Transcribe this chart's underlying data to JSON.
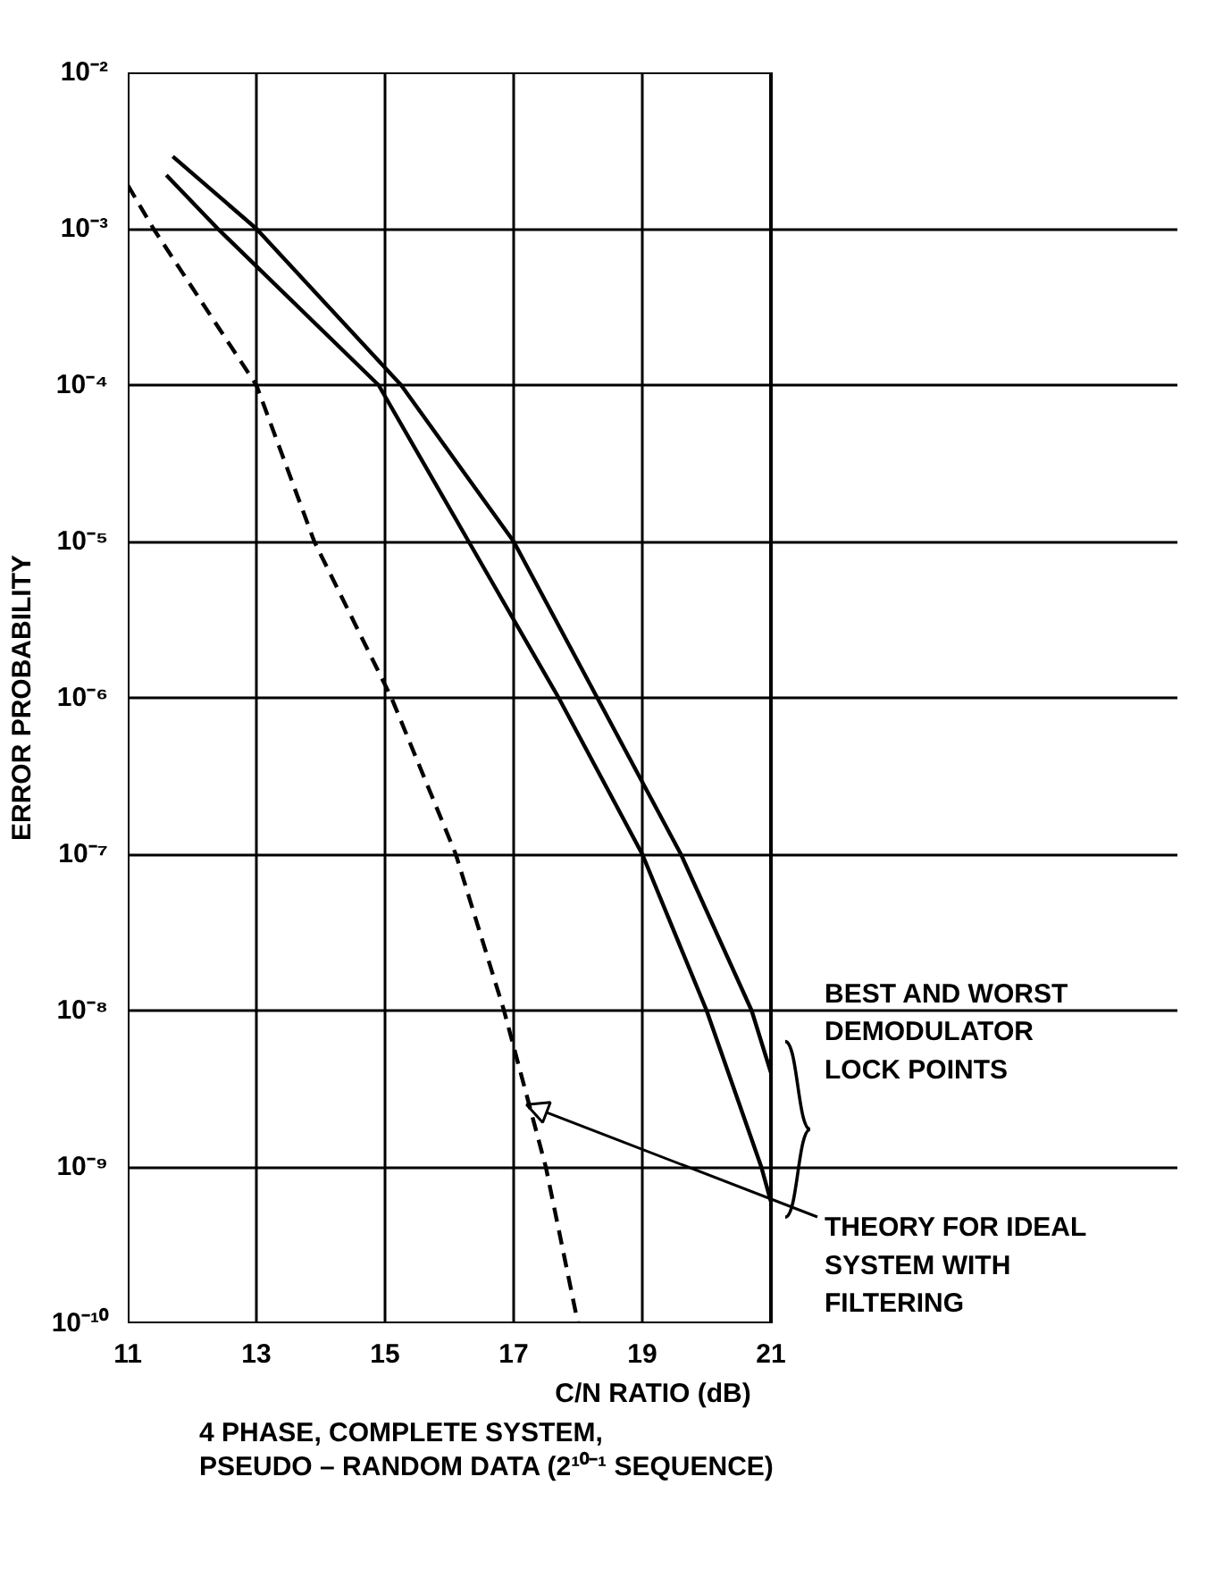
{
  "chart_data": {
    "type": "line",
    "xlabel": "C/N RATIO (dB)",
    "ylabel": "ERROR PROBABILITY",
    "xlim": [
      11,
      21
    ],
    "xticks": [
      11,
      13,
      15,
      17,
      19,
      21
    ],
    "ylim": [
      1e-10,
      0.01
    ],
    "log": "y",
    "grid": true,
    "yticks": [
      {
        "value": 1e-10,
        "label": "10⁻¹⁰"
      },
      {
        "value": 1e-09,
        "label": "10⁻⁹"
      },
      {
        "value": 1e-08,
        "label": "10⁻⁸"
      },
      {
        "value": 1e-07,
        "label": "10⁻⁷"
      },
      {
        "value": 1e-06,
        "label": "10⁻⁶"
      },
      {
        "value": 1e-05,
        "label": "10⁻⁵"
      },
      {
        "value": 0.0001,
        "label": "10⁻⁴"
      },
      {
        "value": 0.001,
        "label": "10⁻³"
      },
      {
        "value": 0.01,
        "label": "10⁻²"
      }
    ],
    "series": [
      {
        "color": "#000000",
        "line_style": "solid",
        "x": [
          11.7,
          13.0,
          15.25,
          17.0,
          18.3,
          19.6,
          20.7,
          21.0
        ],
        "values": [
          0.0029,
          0.001,
          0.0001,
          1e-05,
          1e-06,
          1e-07,
          1e-08,
          4e-09
        ]
      },
      {
        "color": "#000000",
        "line_style": "solid",
        "x": [
          11.6,
          12.4,
          14.9,
          16.3,
          17.7,
          19.0,
          20.0,
          20.85,
          21.0
        ],
        "values": [
          0.0022,
          0.001,
          0.0001,
          1e-05,
          1e-06,
          1e-07,
          1e-08,
          1e-09,
          6e-10
        ]
      },
      {
        "color": "#000000",
        "line_style": "dashed",
        "x": [
          11.0,
          11.4,
          13.0,
          13.9,
          15.1,
          16.1,
          16.85,
          17.5,
          18.0
        ],
        "values": [
          0.0019,
          0.001,
          0.0001,
          1e-05,
          1e-06,
          1e-07,
          1e-08,
          1e-09,
          1e-10
        ]
      }
    ],
    "annotations": [
      "BEST AND WORST\nDEMODULATOR\nLOCK POINTS",
      {
        "text": "THEORY FOR IDEAL\nSYSTEM WITH\nFILTERING",
        "x": 17.2,
        "y": 2.5e-09
      },
      "4 PHASE, COMPLETE SYSTEM,",
      "PSEUDO – RANDOM DATA (2¹⁰⁻¹ SEQUENCE)"
    ]
  }
}
